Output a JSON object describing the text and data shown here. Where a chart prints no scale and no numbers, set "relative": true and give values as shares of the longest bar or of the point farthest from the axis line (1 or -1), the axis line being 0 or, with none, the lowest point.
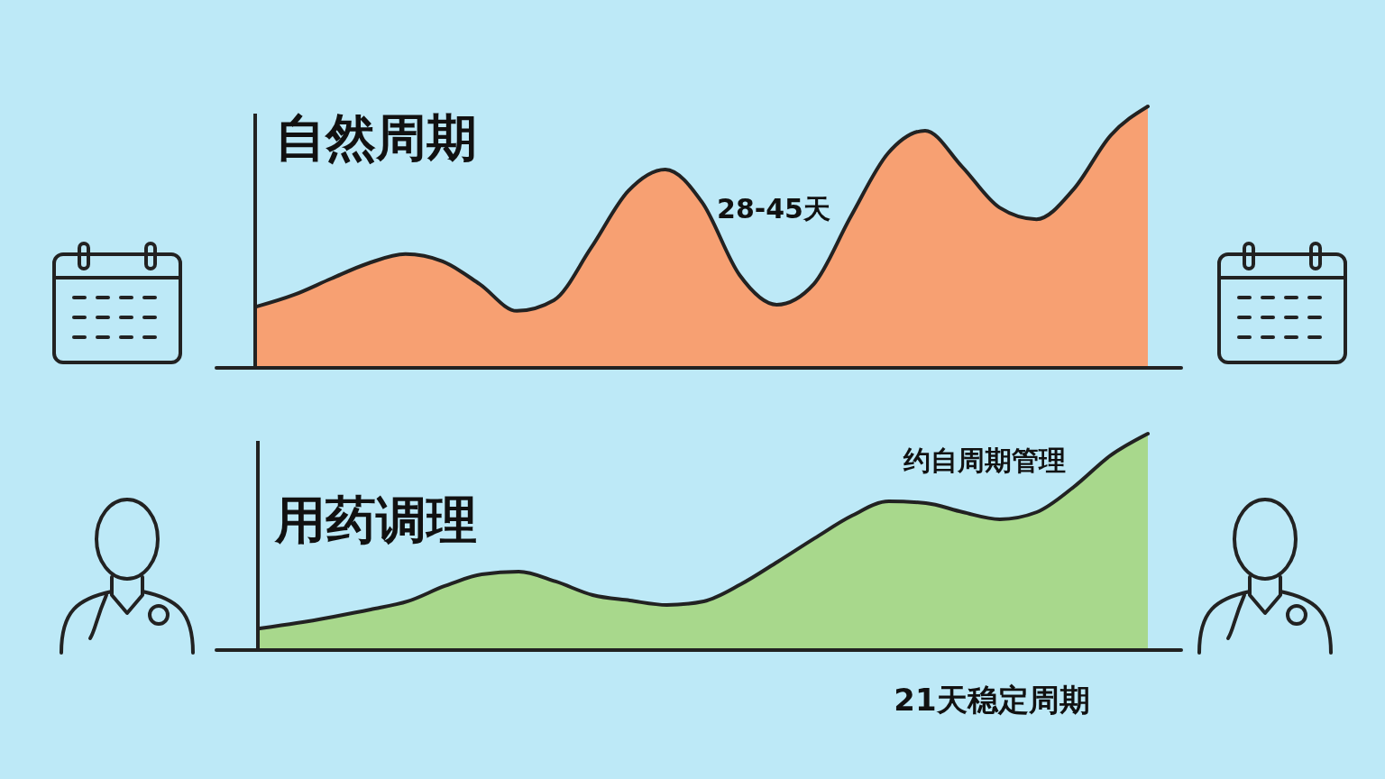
{
  "chart_data": [
    {
      "type": "area",
      "title": "自然周期",
      "relative": true,
      "categories": [
        null,
        null,
        null,
        null,
        null,
        null,
        null,
        null,
        null,
        null,
        null,
        null,
        null,
        null,
        null,
        null,
        null,
        null,
        null,
        null,
        null,
        null,
        null,
        null,
        null
      ],
      "series": [
        {
          "color": "#f7a072",
          "values": [
            0.232,
            0.277,
            0.339,
            0.398,
            0.433,
            0.405,
            0.318,
            0.215,
            0.256,
            0.457,
            0.675,
            0.758,
            0.63,
            0.353,
            0.239,
            0.318,
            0.578,
            0.82,
            0.907,
            0.768,
            0.612,
            0.567,
            0.682,
            0.889,
            1
          ]
        }
      ],
      "annotations": [
        "28-45天"
      ]
    },
    {
      "type": "area",
      "title": "用药调理",
      "relative": true,
      "categories": [
        null,
        null,
        null,
        null,
        null,
        null,
        null,
        null,
        null,
        null,
        null,
        null,
        null,
        null,
        null,
        null,
        null,
        null,
        null,
        null,
        null,
        null,
        null,
        null,
        null
      ],
      "series": [
        {
          "color": "#a8d88c",
          "values": [
            0.096,
            0.121,
            0.151,
            0.184,
            0.222,
            0.293,
            0.347,
            0.36,
            0.314,
            0.251,
            0.226,
            0.205,
            0.222,
            0.301,
            0.406,
            0.515,
            0.619,
            0.686,
            0.678,
            0.636,
            0.603,
            0.636,
            0.753,
            0.9,
            1
          ]
        }
      ],
      "annotations": [
        "约自周期管理",
        "21天稳定周期"
      ]
    }
  ]
}
